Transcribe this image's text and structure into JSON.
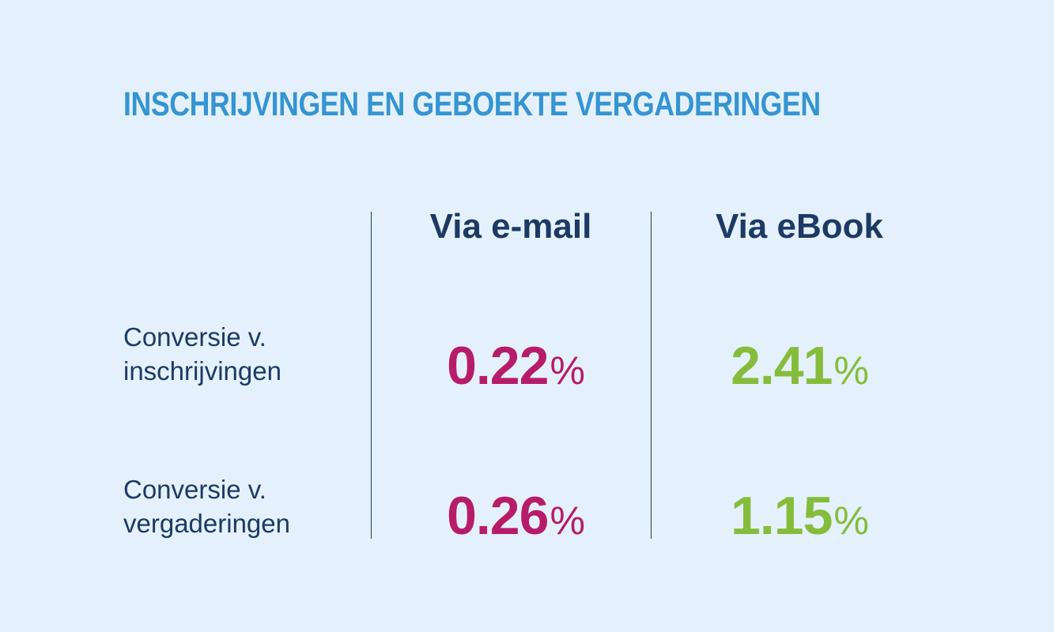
{
  "title": "INSCHRIJVINGEN EN GEBOEKTE VERGADERINGEN",
  "colors": {
    "background": "#e4f1fc",
    "title": "#3594d2",
    "text": "#1c3a63",
    "email": "#b71c6a",
    "ebook": "#86bc3c"
  },
  "columns": [
    "Via e-mail",
    "Via eBook"
  ],
  "rows": [
    {
      "label_line1": "Conversie v.",
      "label_line2": "inschrijvingen",
      "email": "0.22",
      "ebook": "2.41"
    },
    {
      "label_line1": "Conversie v.",
      "label_line2": "vergaderingen",
      "email": "0.26",
      "ebook": "1.15"
    }
  ],
  "unit": "%",
  "chart_data": {
    "type": "table",
    "title": "INSCHRIJVINGEN EN GEBOEKTE VERGADERINGEN",
    "columns": [
      "Via e-mail",
      "Via eBook"
    ],
    "rows": [
      "Conversie v. inschrijvingen",
      "Conversie v. vergaderingen"
    ],
    "values": [
      [
        0.22,
        2.41
      ],
      [
        0.26,
        1.15
      ]
    ],
    "unit": "%"
  }
}
